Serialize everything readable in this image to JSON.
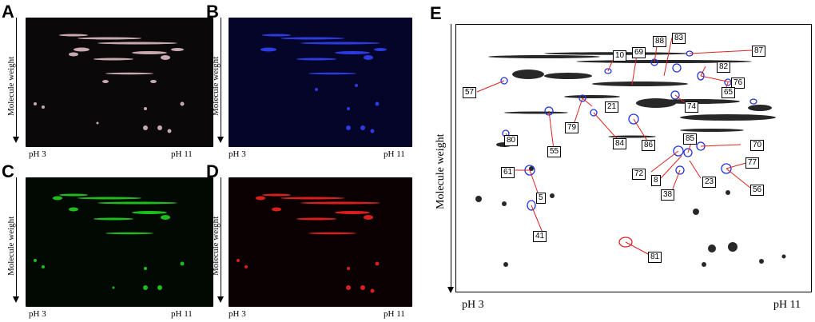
{
  "panels": [
    {
      "letter": "A",
      "xlabel_left": "pH 3",
      "xlabel_right": "pH 11",
      "ylabel": "Molecule weight",
      "channel": "merge",
      "tint": "#e6c8c8"
    },
    {
      "letter": "B",
      "xlabel_left": "pH 3",
      "xlabel_right": "pH 11",
      "ylabel": "Molecule weight",
      "channel": "blue",
      "tint": "#2a3cff"
    },
    {
      "letter": "C",
      "xlabel_left": "pH 3",
      "xlabel_right": "pH 11",
      "ylabel": "Molecule weight",
      "channel": "green",
      "tint": "#1ed21e"
    },
    {
      "letter": "D",
      "xlabel_left": "pH 3",
      "xlabel_right": "pH 11",
      "ylabel": "Molecule weight",
      "channel": "red",
      "tint": "#ff2020"
    }
  ],
  "panel_e": {
    "letter": "E",
    "xlabel_left": "pH 3",
    "xlabel_right": "pH 11",
    "ylabel": "Molecule weight",
    "spots": [
      "10",
      "69",
      "88",
      "83",
      "87",
      "82",
      "76",
      "65",
      "57",
      "21",
      "74",
      "79",
      "84",
      "86",
      "85",
      "70",
      "80",
      "55",
      "72",
      "8",
      "77",
      "61",
      "23",
      "38",
      "56",
      "5",
      "41",
      "81"
    ]
  },
  "colors": {
    "outline": "#2233dd",
    "leader": "#dd2222",
    "highlight": "#dd2222"
  }
}
